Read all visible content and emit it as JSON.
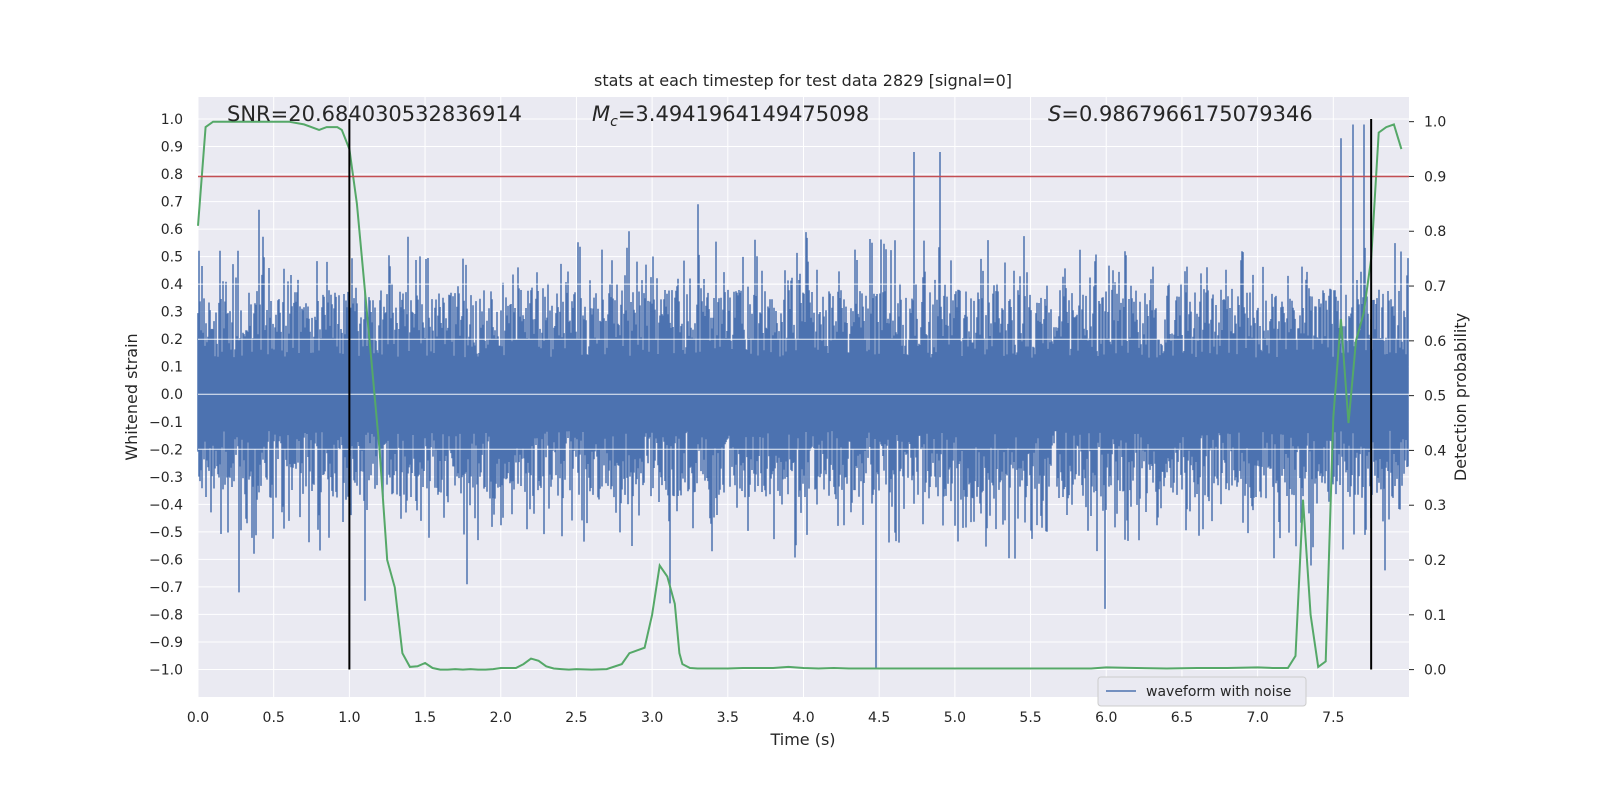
{
  "chart_data": {
    "type": "line",
    "title": "stats at each timestep for test data 2829 [signal=0]",
    "xlabel": "Time (s)",
    "ylabel_left": "Whitened strain",
    "ylabel_right": "Detection probability",
    "xlim": [
      0.0,
      8.0
    ],
    "ylim_left": [
      -1.1,
      1.08
    ],
    "ylim_right": [
      -0.05,
      1.045
    ],
    "x_ticks": [
      0.0,
      0.5,
      1.0,
      1.5,
      2.0,
      2.5,
      3.0,
      3.5,
      4.0,
      4.5,
      5.0,
      5.5,
      6.0,
      6.5,
      7.0,
      7.5
    ],
    "x_tick_labels": [
      "0.0",
      "0.5",
      "1.0",
      "1.5",
      "2.0",
      "2.5",
      "3.0",
      "3.5",
      "4.0",
      "4.5",
      "5.0",
      "5.5",
      "6.0",
      "6.5",
      "7.0",
      "7.5"
    ],
    "y_left_ticks": [
      -1.0,
      -0.9,
      -0.8,
      -0.7,
      -0.6,
      -0.5,
      -0.4,
      -0.3,
      -0.2,
      -0.1,
      0.0,
      0.1,
      0.2,
      0.3,
      0.4,
      0.5,
      0.6,
      0.7,
      0.8,
      0.9,
      1.0
    ],
    "y_left_tick_labels": [
      "−1.0",
      "−0.9",
      "−0.8",
      "−0.7",
      "−0.6",
      "−0.5",
      "−0.4",
      "−0.3",
      "−0.2",
      "−0.1",
      "0.0",
      "0.1",
      "0.2",
      "0.3",
      "0.4",
      "0.5",
      "0.6",
      "0.7",
      "0.8",
      "0.9",
      "1.0"
    ],
    "y_right_ticks": [
      0.0,
      0.1,
      0.2,
      0.3,
      0.4,
      0.5,
      0.6,
      0.7,
      0.8,
      0.9,
      1.0
    ],
    "y_right_tick_labels": [
      "0.0",
      "0.1",
      "0.2",
      "0.3",
      "0.4",
      "0.5",
      "0.6",
      "0.7",
      "0.8",
      "0.9",
      "1.0"
    ],
    "grid": true,
    "annotations": {
      "snr": "SNR=20.684030532836914",
      "mc": "Mc=3.4941964149475098",
      "mc_symbol": "M",
      "mc_subscript": "c",
      "mc_value": "=3.4941964149475098",
      "s_symbol": "S",
      "s_value": "=0.9867966175079346"
    },
    "threshold": 0.9,
    "vlines_x": [
      1.0,
      7.75
    ],
    "waveform": {
      "name": "waveform with noise",
      "typical_amplitude": 0.38,
      "notable_spikes": [
        {
          "t": 0.27,
          "v": -0.72
        },
        {
          "t": 0.4,
          "v": 0.67
        },
        {
          "t": 1.1,
          "v": -0.75
        },
        {
          "t": 1.78,
          "v": -0.69
        },
        {
          "t": 3.12,
          "v": -0.76
        },
        {
          "t": 3.3,
          "v": 0.69
        },
        {
          "t": 4.48,
          "v": -1.0
        },
        {
          "t": 4.73,
          "v": 0.88
        },
        {
          "t": 4.9,
          "v": 0.88
        },
        {
          "t": 5.99,
          "v": -0.78
        },
        {
          "t": 7.55,
          "v": 0.93
        },
        {
          "t": 7.63,
          "v": 0.98
        },
        {
          "t": 7.7,
          "v": 0.98
        },
        {
          "t": 7.84,
          "v": -0.64
        }
      ]
    },
    "probability": {
      "x": [
        0.0,
        0.05,
        0.1,
        0.15,
        0.2,
        0.3,
        0.4,
        0.5,
        0.6,
        0.7,
        0.8,
        0.85,
        0.92,
        0.95,
        1.0,
        1.05,
        1.1,
        1.15,
        1.2,
        1.25,
        1.3,
        1.35,
        1.4,
        1.45,
        1.5,
        1.55,
        1.6,
        1.65,
        1.7,
        1.75,
        1.8,
        1.85,
        1.9,
        1.95,
        2.0,
        2.05,
        2.1,
        2.15,
        2.2,
        2.25,
        2.3,
        2.35,
        2.4,
        2.45,
        2.5,
        2.6,
        2.7,
        2.8,
        2.85,
        2.9,
        2.95,
        3.0,
        3.05,
        3.1,
        3.15,
        3.18,
        3.2,
        3.25,
        3.3,
        3.35,
        3.4,
        3.5,
        3.6,
        3.7,
        3.8,
        3.9,
        4.0,
        4.1,
        4.2,
        4.3,
        4.4,
        4.5,
        4.6,
        4.7,
        4.8,
        4.9,
        5.0,
        5.2,
        5.4,
        5.6,
        5.8,
        5.9,
        6.0,
        6.2,
        6.4,
        6.6,
        6.8,
        7.0,
        7.1,
        7.2,
        7.25,
        7.3,
        7.35,
        7.4,
        7.45,
        7.5,
        7.55,
        7.6,
        7.65,
        7.7,
        7.75,
        7.8,
        7.85,
        7.9,
        7.95
      ],
      "y": [
        0.81,
        0.99,
        1.0,
        1.0,
        1.0,
        1.0,
        1.0,
        1.0,
        1.0,
        0.995,
        0.985,
        0.99,
        0.99,
        0.985,
        0.95,
        0.85,
        0.7,
        0.55,
        0.4,
        0.2,
        0.15,
        0.03,
        0.005,
        0.006,
        0.012,
        0.003,
        0.0,
        0.0,
        0.001,
        0.0,
        0.001,
        0.0,
        0.0,
        0.001,
        0.003,
        0.003,
        0.003,
        0.01,
        0.02,
        0.016,
        0.006,
        0.002,
        0.001,
        0.0,
        0.001,
        0.0,
        0.001,
        0.01,
        0.03,
        0.035,
        0.04,
        0.1,
        0.19,
        0.17,
        0.12,
        0.03,
        0.01,
        0.003,
        0.002,
        0.002,
        0.002,
        0.002,
        0.003,
        0.003,
        0.003,
        0.005,
        0.003,
        0.002,
        0.003,
        0.002,
        0.002,
        0.002,
        0.002,
        0.002,
        0.002,
        0.002,
        0.002,
        0.002,
        0.002,
        0.002,
        0.002,
        0.002,
        0.004,
        0.003,
        0.002,
        0.003,
        0.003,
        0.004,
        0.003,
        0.003,
        0.025,
        0.31,
        0.1,
        0.005,
        0.015,
        0.46,
        0.64,
        0.45,
        0.6,
        0.65,
        0.75,
        0.98,
        0.99,
        0.995,
        0.95
      ]
    },
    "legend": {
      "label": "waveform with noise",
      "position": "lower-right"
    },
    "colors": {
      "background": "#eaeaf2",
      "grid": "#ffffff",
      "waveform": "#4c72b0",
      "probability": "#55a868",
      "threshold": "#c44e52",
      "vline": "#000000",
      "text": "#262626"
    }
  }
}
